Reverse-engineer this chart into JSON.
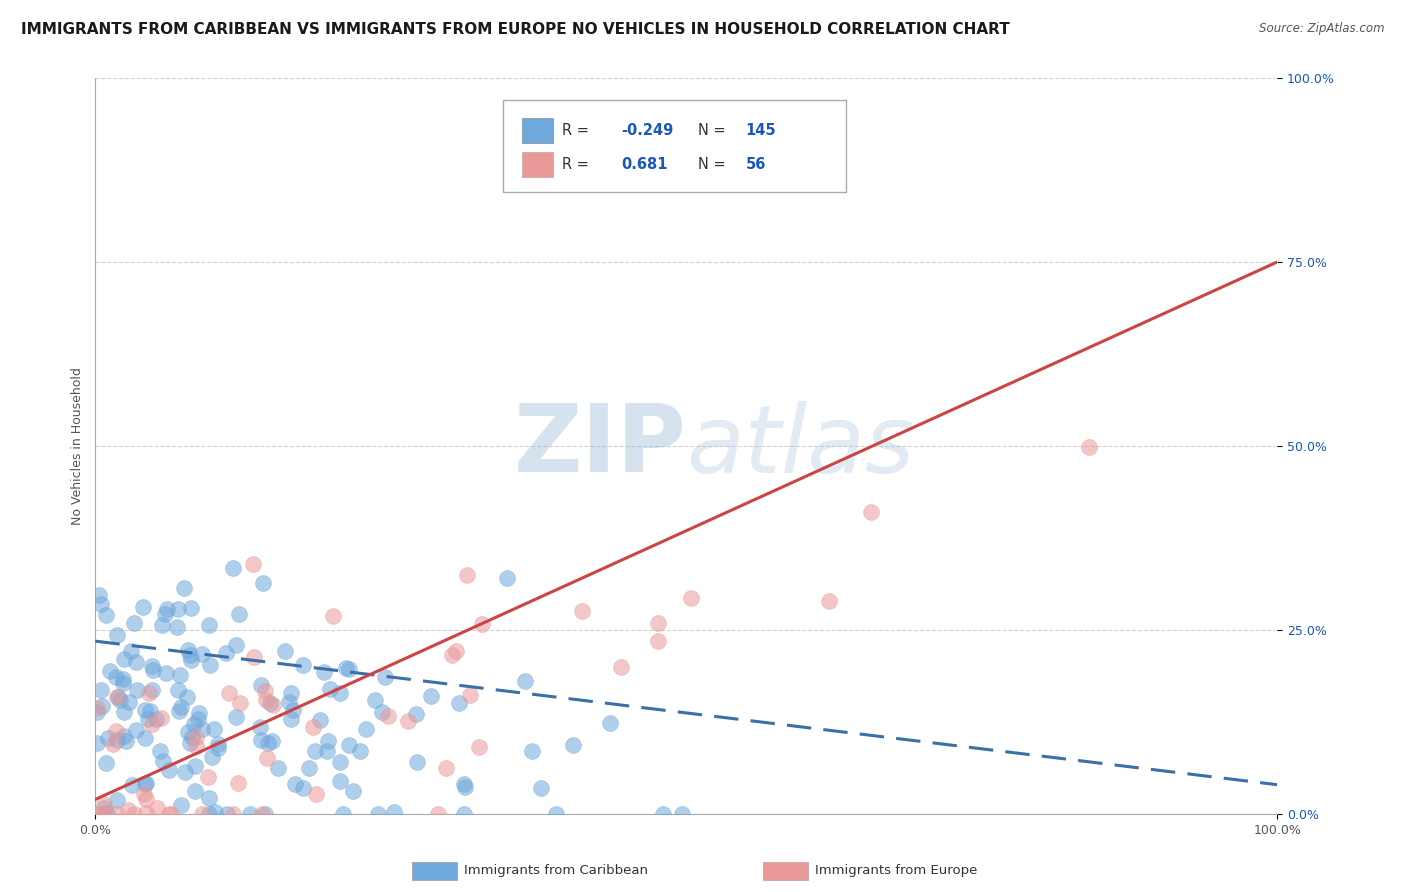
{
  "title": "IMMIGRANTS FROM CARIBBEAN VS IMMIGRANTS FROM EUROPE NO VEHICLES IN HOUSEHOLD CORRELATION CHART",
  "source": "Source: ZipAtlas.com",
  "ylabel": "No Vehicles in Household",
  "xlim": [
    0.0,
    1.0
  ],
  "ylim": [
    0.0,
    1.0
  ],
  "xtick_labels": [
    "0.0%",
    "100.0%"
  ],
  "ytick_labels": [
    "0.0%",
    "25.0%",
    "50.0%",
    "75.0%",
    "100.0%"
  ],
  "ytick_positions": [
    0.0,
    0.25,
    0.5,
    0.75,
    1.0
  ],
  "watermark": "ZIPatlas",
  "legend_blue_label": "Immigrants from Caribbean",
  "legend_pink_label": "Immigrants from Europe",
  "R_blue": -0.249,
  "N_blue": 145,
  "R_pink": 0.681,
  "N_pink": 56,
  "blue_color": "#6fa8dc",
  "pink_color": "#ea9999",
  "blue_line_color": "#3a6fa8",
  "pink_line_color": "#cc4444",
  "background_color": "#ffffff",
  "grid_color": "#cccccc",
  "title_fontsize": 11,
  "axis_label_fontsize": 9,
  "tick_label_fontsize": 9,
  "corr_text_color": "#1a56bb",
  "label_text_color": "#333333"
}
